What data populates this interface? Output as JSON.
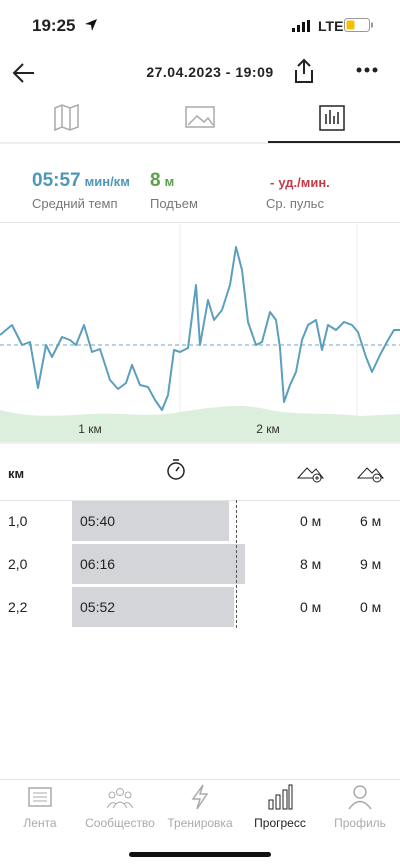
{
  "status_bar": {
    "time": "19:25",
    "network": "LTE"
  },
  "header": {
    "title": "27.04.2023 - 19:09"
  },
  "stats": [
    {
      "value": "05:57",
      "unit": "мин/км",
      "label": "Средний темп"
    },
    {
      "value": "8",
      "unit": "м",
      "label": "Подъем"
    },
    {
      "value": "-",
      "unit": "уд./мин.",
      "label": "Ср. пульс"
    }
  ],
  "chart": {
    "x_labels": [
      "1 км",
      "2 км"
    ]
  },
  "splits": {
    "header": "км",
    "rows": [
      [
        "1,0",
        "05:40",
        "0 м",
        "6 м"
      ],
      [
        "2,0",
        "06:16",
        "8 м",
        "9 м"
      ],
      [
        "2,2",
        "05:52",
        "0 м",
        "0 м"
      ]
    ]
  },
  "tab_bar": [
    "Лента",
    "Сообщество",
    "Тренировка",
    "Прогресс",
    "Профиль"
  ]
}
